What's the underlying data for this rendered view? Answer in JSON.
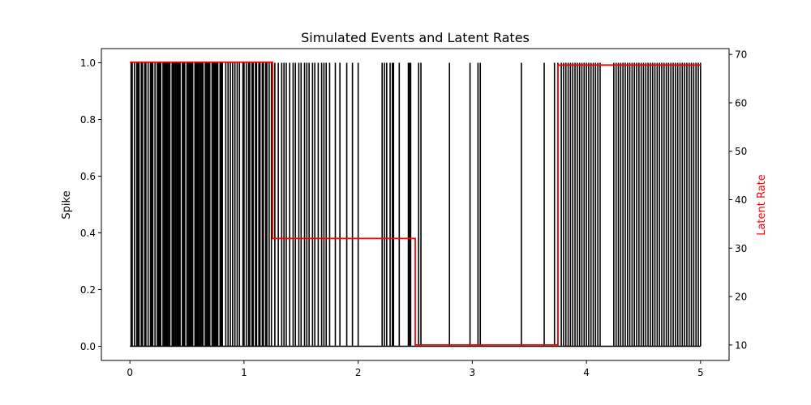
{
  "chart_data": {
    "type": "line",
    "title": "Simulated Events and Latent Rates",
    "xlabel": "",
    "ylabel": "Spike",
    "y2label": "Latent Rate",
    "xlim": [
      -0.25,
      5.25
    ],
    "ylim": [
      -0.05,
      1.05
    ],
    "y2lim": [
      6.8,
      71.2
    ],
    "xticks": [
      0,
      1,
      2,
      3,
      4,
      5
    ],
    "yticks": [
      0.0,
      0.2,
      0.4,
      0.6,
      0.8,
      1.0
    ],
    "y2ticks": [
      10,
      20,
      30,
      40,
      50,
      60,
      70
    ],
    "xtick_labels": [
      "0",
      "1",
      "2",
      "3",
      "4",
      "5"
    ],
    "ytick_labels": [
      "0.0",
      "0.2",
      "0.4",
      "0.6",
      "0.8",
      "1.0"
    ],
    "y2tick_labels": [
      "10",
      "20",
      "30",
      "40",
      "50",
      "60",
      "70"
    ],
    "grid": false,
    "spike_color": "#000000",
    "rate_color": "#ff0000",
    "series": [
      {
        "axis": "left",
        "style": "spikes",
        "x": [
          0.01,
          0.02,
          0.04,
          0.06,
          0.07,
          0.08,
          0.1,
          0.11,
          0.13,
          0.14,
          0.16,
          0.18,
          0.19,
          0.2,
          0.22,
          0.24,
          0.25,
          0.26,
          0.27,
          0.29,
          0.3,
          0.31,
          0.32,
          0.33,
          0.34,
          0.35,
          0.37,
          0.38,
          0.39,
          0.4,
          0.41,
          0.42,
          0.43,
          0.44,
          0.46,
          0.47,
          0.48,
          0.5,
          0.51,
          0.52,
          0.53,
          0.54,
          0.55,
          0.57,
          0.58,
          0.59,
          0.6,
          0.61,
          0.62,
          0.63,
          0.64,
          0.66,
          0.67,
          0.68,
          0.69,
          0.7,
          0.72,
          0.73,
          0.74,
          0.75,
          0.76,
          0.77,
          0.79,
          0.8,
          0.81,
          0.84,
          0.86,
          0.88,
          0.9,
          0.92,
          0.94,
          0.96,
          0.99,
          1.0,
          1.02,
          1.04,
          1.05,
          1.07,
          1.08,
          1.1,
          1.11,
          1.13,
          1.14,
          1.16,
          1.17,
          1.19,
          1.2,
          1.22,
          1.24,
          1.27,
          1.3,
          1.33,
          1.35,
          1.37,
          1.4,
          1.43,
          1.45,
          1.48,
          1.5,
          1.53,
          1.55,
          1.57,
          1.6,
          1.62,
          1.65,
          1.68,
          1.7,
          1.72,
          1.75,
          1.8,
          1.84,
          1.9,
          1.95,
          2.0,
          2.21,
          2.23,
          2.25,
          2.28,
          2.3,
          2.31,
          2.36,
          2.44,
          2.45,
          2.46,
          2.53,
          2.55,
          2.8,
          2.98,
          3.05,
          3.07,
          3.43,
          3.63,
          3.72,
          3.75,
          3.78,
          3.8,
          3.82,
          3.84,
          3.86,
          3.88,
          3.9,
          3.92,
          3.94,
          3.96,
          3.98,
          4.0,
          4.02,
          4.04,
          4.06,
          4.08,
          4.1,
          4.12,
          4.24,
          4.26,
          4.28,
          4.3,
          4.32,
          4.34,
          4.36,
          4.38,
          4.4,
          4.42,
          4.44,
          4.46,
          4.48,
          4.5,
          4.52,
          4.54,
          4.56,
          4.58,
          4.6,
          4.62,
          4.64,
          4.66,
          4.68,
          4.7,
          4.72,
          4.74,
          4.76,
          4.78,
          4.8,
          4.82,
          4.84,
          4.86,
          4.88,
          4.9,
          4.92,
          4.94,
          4.96,
          4.98,
          5.0
        ]
      },
      {
        "axis": "right",
        "style": "step",
        "x": [
          0.0,
          1.25,
          1.25,
          2.5,
          2.5,
          3.75,
          3.75,
          5.0
        ],
        "values": [
          68.4,
          68.4,
          32.0,
          32.0,
          10.0,
          10.0,
          67.8,
          67.8
        ]
      }
    ]
  }
}
